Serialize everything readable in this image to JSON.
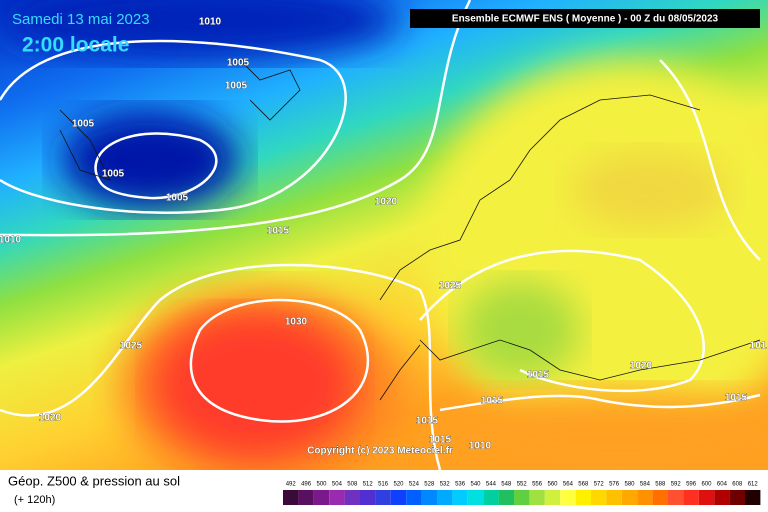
{
  "header": {
    "date": "Samedi 13 mai 2023",
    "time": "2:00 locale",
    "model": "Ensemble ECMWF ENS  ( Moyenne )  -  00 Z du 08/05/2023",
    "copyright": "Copyright (c) 2023 Meteociel.fr"
  },
  "isobars": [
    1010,
    1005,
    1005,
    1005,
    1005,
    1005,
    1020,
    1015,
    1010,
    1025,
    1030,
    1025,
    1015,
    1020,
    1015,
    1020,
    1015,
    1015,
    1015,
    1010,
    101
  ],
  "legend": {
    "title": "Géop. Z500 & pression au sol",
    "subtitle": "(+ 120h)",
    "scale": [
      492,
      496,
      500,
      504,
      508,
      512,
      516,
      520,
      524,
      528,
      532,
      536,
      540,
      544,
      548,
      552,
      556,
      560,
      564,
      568,
      572,
      576,
      580,
      584,
      588,
      592,
      596,
      600,
      604,
      608,
      612
    ],
    "colors": [
      "#3a0a3a",
      "#5a1060",
      "#7a1a8a",
      "#9a2ab0",
      "#7030c0",
      "#5030d0",
      "#3040e0",
      "#1040ff",
      "#0060ff",
      "#0088ff",
      "#00aaff",
      "#00ccff",
      "#00e0e0",
      "#00d0a0",
      "#20c060",
      "#60d040",
      "#a0e040",
      "#d0f040",
      "#ffff40",
      "#fff000",
      "#ffd800",
      "#ffc000",
      "#ffa800",
      "#ff9000",
      "#ff7000",
      "#ff5030",
      "#ff3020",
      "#e01010",
      "#b00000",
      "#700000",
      "#200000"
    ]
  }
}
